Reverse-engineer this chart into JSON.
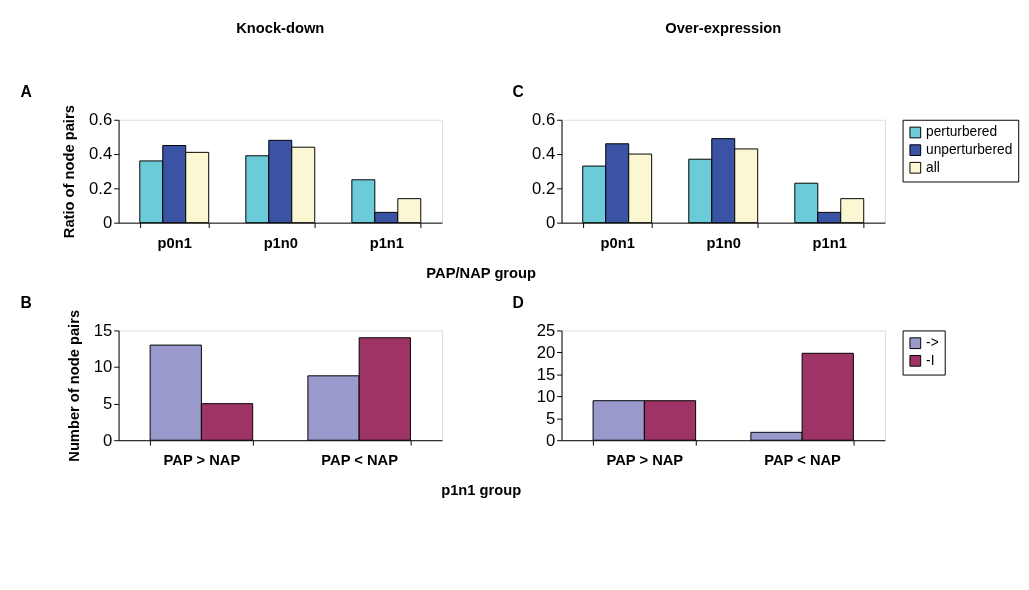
{
  "chart_data": [
    {
      "type": "bar",
      "title": "Knock-down",
      "annotations": [
        "A"
      ],
      "ylabel": "Ratio of node pairs",
      "xlabel": "PAP/NAP group",
      "categories": [
        "p0n1",
        "p1n0",
        "p1n1"
      ],
      "ylim": [
        0,
        0.6
      ],
      "yticks": [
        0,
        0.2,
        0.4,
        0.6
      ],
      "grid": false,
      "legend": false,
      "series": [
        {
          "color": "#6ccbd9",
          "values": [
            0.36,
            0.39,
            0.25
          ]
        },
        {
          "color": "#3a53a4",
          "values": [
            0.45,
            0.48,
            0.06
          ]
        },
        {
          "color": "#fbf7d2",
          "values": [
            0.41,
            0.44,
            0.14
          ]
        }
      ]
    },
    {
      "type": "bar",
      "title": "Over-expression",
      "annotations": [
        "C"
      ],
      "categories": [
        "p0n1",
        "p1n0",
        "p1n1"
      ],
      "ylim": [
        0,
        0.6
      ],
      "yticks": [
        0,
        0.2,
        0.4,
        0.6
      ],
      "grid": false,
      "legend": "right",
      "series": [
        {
          "name": "perturbered",
          "color": "#6ccbd9",
          "values": [
            0.33,
            0.37,
            0.23
          ]
        },
        {
          "name": "unperturbered",
          "color": "#3a53a4",
          "values": [
            0.46,
            0.49,
            0.06
          ]
        },
        {
          "name": "all",
          "color": "#fbf7d2",
          "values": [
            0.4,
            0.43,
            0.14
          ]
        }
      ]
    },
    {
      "type": "bar",
      "annotations": [
        "B"
      ],
      "ylabel": "Number of node pairs",
      "xlabel": "p1n1 group",
      "categories": [
        "PAP > NAP",
        "PAP < NAP"
      ],
      "ylim": [
        0,
        15
      ],
      "yticks": [
        0,
        5,
        10,
        15
      ],
      "grid": false,
      "legend": false,
      "series": [
        {
          "color": "#9999cc",
          "values": [
            13,
            8.8
          ]
        },
        {
          "color": "#9e3366",
          "values": [
            5,
            14
          ]
        }
      ]
    },
    {
      "type": "bar",
      "annotations": [
        "D"
      ],
      "categories": [
        "PAP > NAP",
        "PAP < NAP"
      ],
      "ylim": [
        0,
        25
      ],
      "yticks": [
        0,
        5,
        10,
        15,
        20,
        25
      ],
      "grid": false,
      "legend": "right",
      "series": [
        {
          "name": "->",
          "color": "#9999cc",
          "values": [
            9,
            1.8
          ]
        },
        {
          "name": "-I",
          "color": "#9e3366",
          "values": [
            9,
            19.8
          ]
        }
      ]
    }
  ]
}
